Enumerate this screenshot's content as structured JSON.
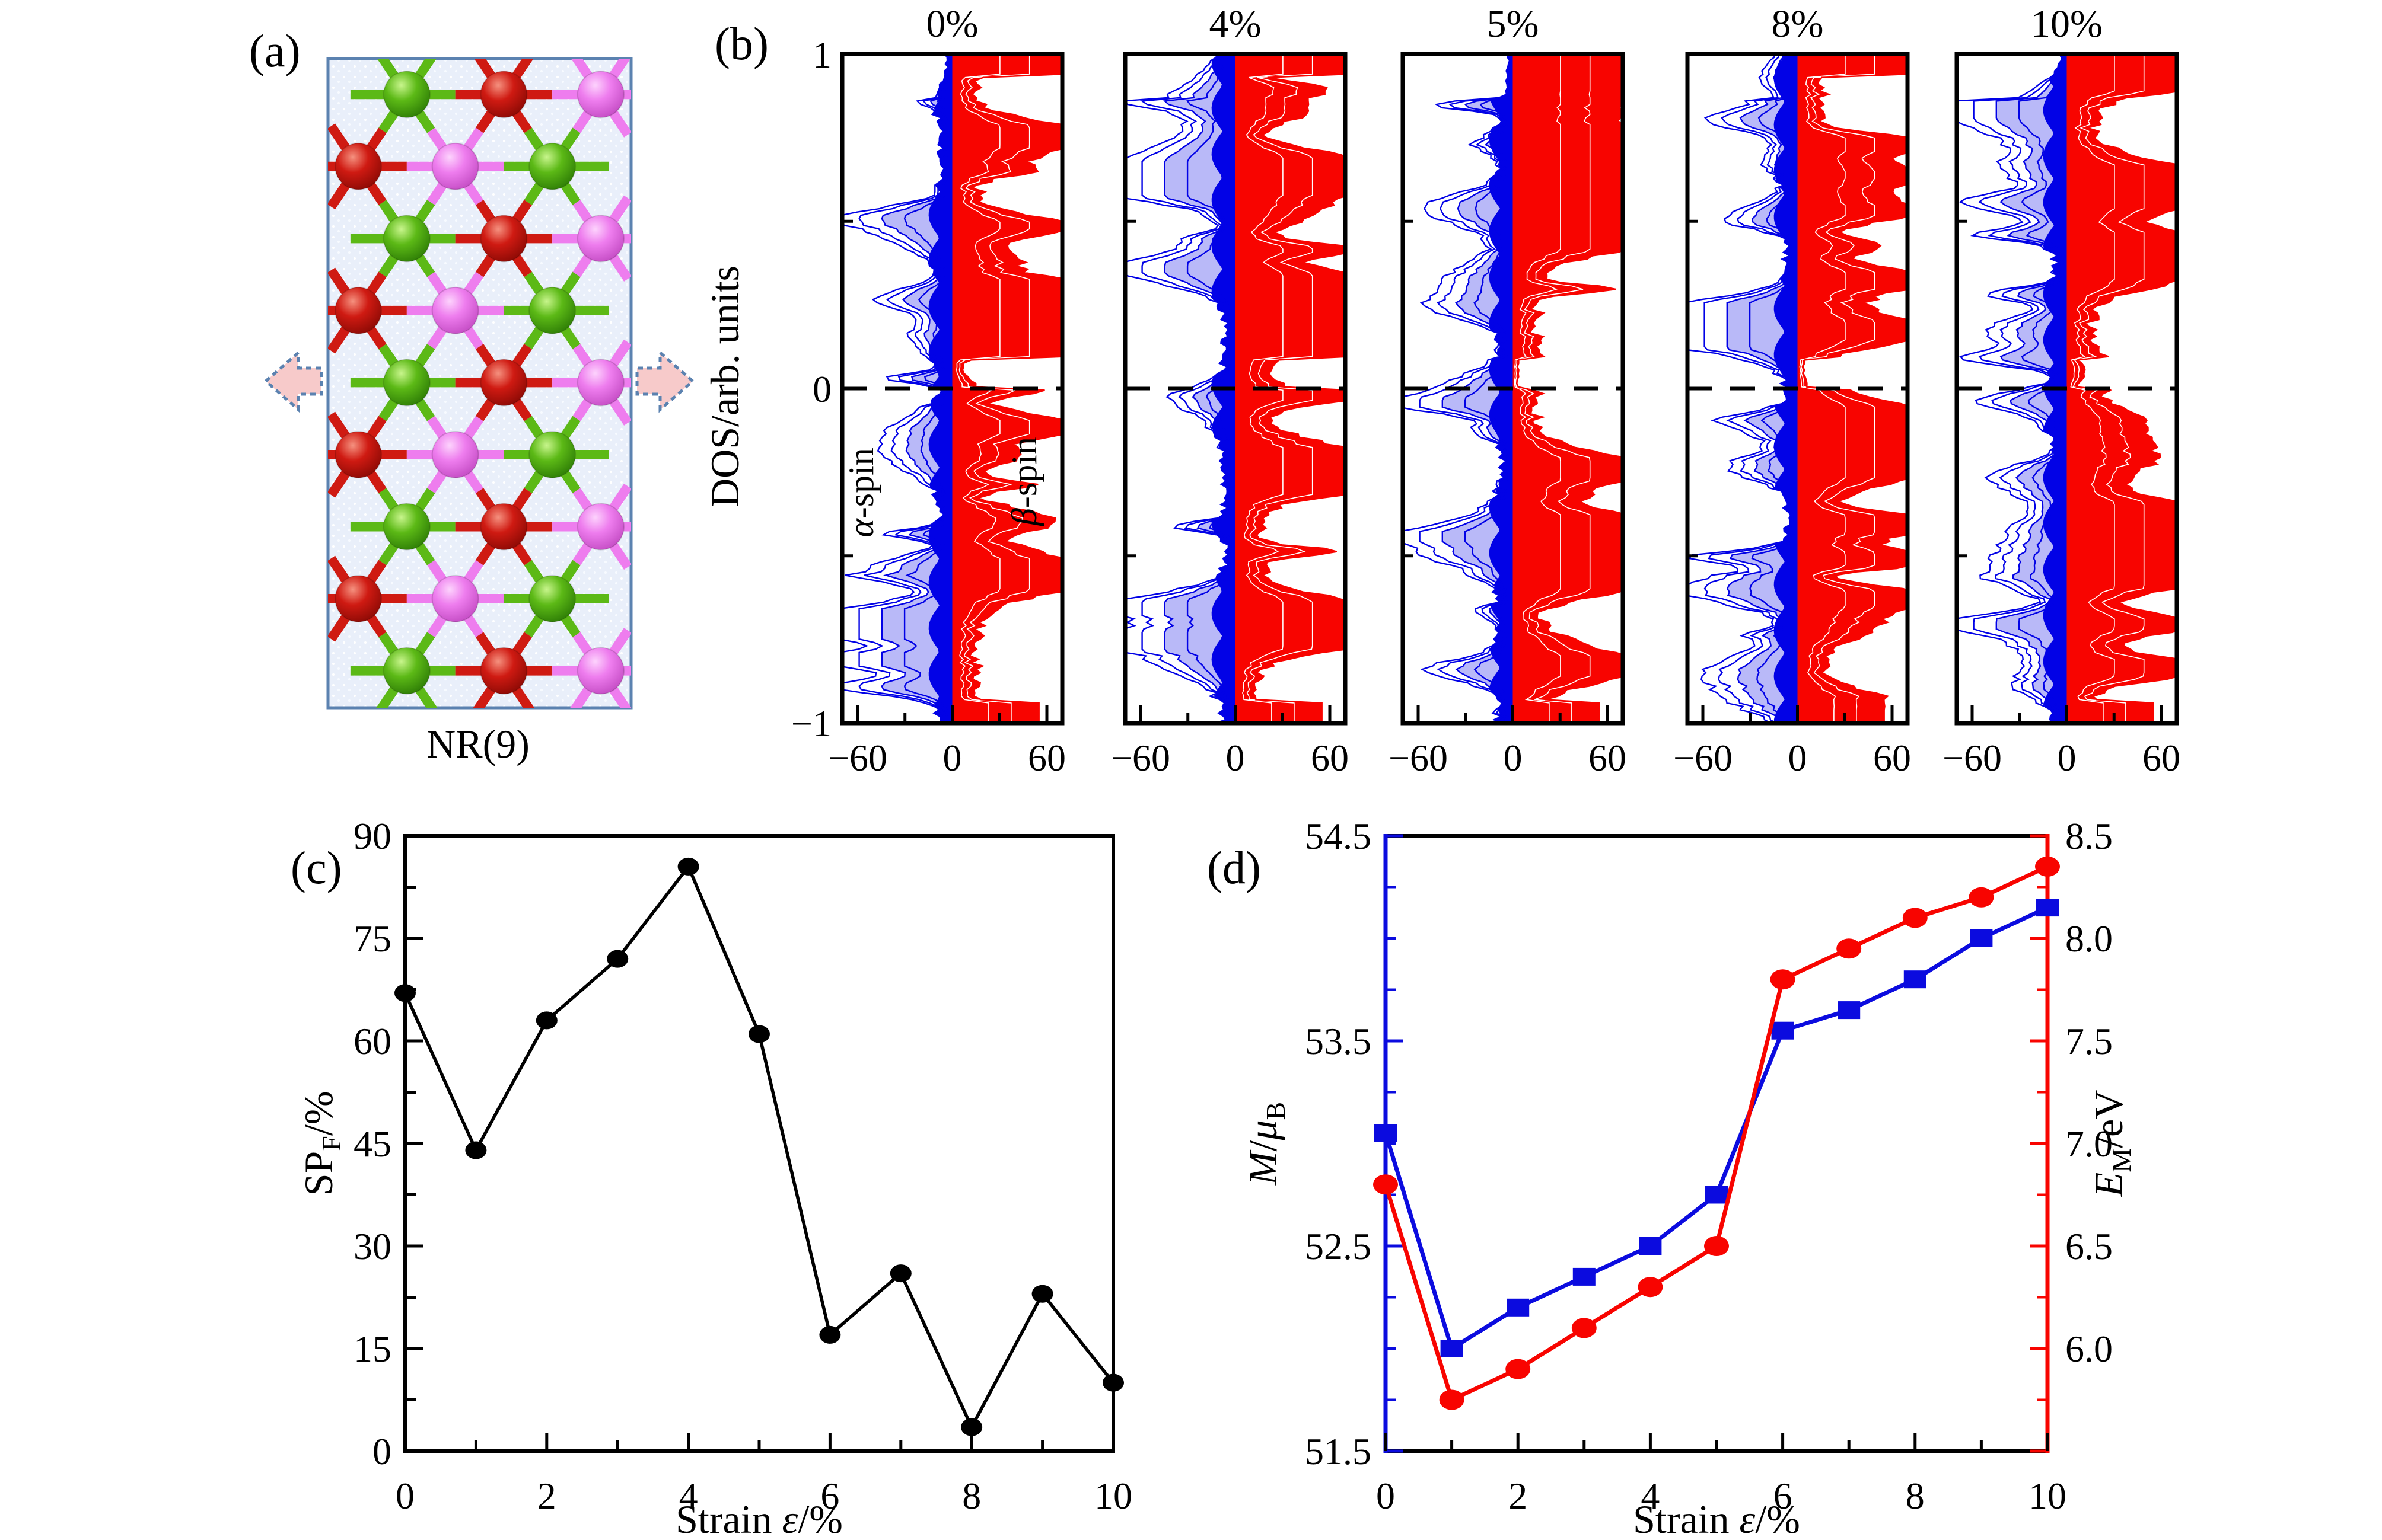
{
  "figure": {
    "panel_a": {
      "label": "(a)",
      "caption": "NR(9)",
      "box_bg": "#e9effa",
      "box_border": "#5b82b0",
      "arrow_fill": "#f7caca",
      "arrow_stroke": "#5b82b0",
      "atom_colors": {
        "green": "#5cb916",
        "red": "#cf1a12",
        "violet": "#ee7dee"
      },
      "lattice": {
        "rows": 9,
        "odd_x": [
          0.26,
          0.58,
          0.9
        ],
        "even_x": [
          0.1,
          0.42,
          0.74
        ],
        "odd_colors": [
          "green",
          "red",
          "violet"
        ],
        "even_colors": [
          "red",
          "violet",
          "green"
        ],
        "y_start": 0.055,
        "y_step": 0.111
      }
    },
    "panel_b": {
      "label": "(b)",
      "ylabel": "DOS/arb. units",
      "alpha_char": "α",
      "alpha_rest": "-spin",
      "beta_char": "β",
      "beta_rest": "-spin",
      "yticks": [
        "1",
        "0",
        "−1"
      ],
      "xticks": [
        "−60",
        "0",
        "60"
      ]
    },
    "panel_c": {
      "label": "(c)",
      "ylabel_main": "SP",
      "ylabel_sub": "F",
      "ylabel_rest": "/%",
      "xlabel_pre": "Strain ",
      "xlabel_eps": "ε",
      "xlabel_post": "/%"
    },
    "panel_d": {
      "label": "(d)",
      "ylabel_left_m": "M",
      "ylabel_left_slash": "/",
      "ylabel_left_mu": "μ",
      "ylabel_left_sub": "B",
      "ylabel_right_e": "E",
      "ylabel_right_sub": "M",
      "ylabel_right_rest": "/eV",
      "xlabel_pre": "Strain ",
      "xlabel_eps": "ε",
      "xlabel_post": "/%"
    }
  },
  "chart_data": [
    {
      "id": "dos-spin-panels",
      "type": "area",
      "panel_titles": [
        "0%",
        "4%",
        "5%",
        "8%",
        "10%"
      ],
      "xlim": [
        -70,
        70
      ],
      "xticks": [
        -60,
        0,
        60
      ],
      "xtick_labels": [
        "−60",
        "0",
        "60"
      ],
      "xminor": [
        -30,
        30
      ],
      "ylim": [
        -1,
        1
      ],
      "yticks": [
        1,
        0,
        -1
      ],
      "ytick_labels": [
        "1",
        "0",
        "−1"
      ],
      "yminor": [
        0.5,
        -0.5
      ],
      "ylabel": "DOS/arb. units",
      "fermi_level": 0,
      "series_labels": [
        "α-spin",
        "β-spin"
      ],
      "alpha_side": "negative-x",
      "beta_side": "positive-x",
      "colors": {
        "alpha": "#0202e6",
        "beta": "#f80400"
      },
      "procedural_seeds": {
        "alpha": [
          101,
          102,
          103,
          104,
          105
        ],
        "beta": [
          201,
          202,
          203,
          204,
          205
        ]
      }
    },
    {
      "id": "spin-polarization-vs-strain",
      "type": "line",
      "xlabel": "Strain ε/%",
      "ylabel": "SPF/%",
      "x": [
        0,
        1,
        2,
        3,
        4,
        5,
        6,
        7,
        8,
        9,
        10
      ],
      "y": [
        67,
        44,
        63,
        72,
        85.5,
        61,
        17,
        26,
        3.5,
        23,
        10
      ],
      "xlim": [
        0,
        10
      ],
      "xticks": [
        0,
        2,
        4,
        6,
        8,
        10
      ],
      "ylim": [
        0,
        90
      ],
      "yticks": [
        0,
        15,
        30,
        45,
        60,
        75,
        90
      ],
      "marker": "circle",
      "color": "#000000"
    },
    {
      "id": "moment-and-energy-vs-strain",
      "type": "line",
      "xlabel": "Strain ε/%",
      "x": [
        0,
        1,
        2,
        3,
        4,
        5,
        6,
        7,
        8,
        9,
        10
      ],
      "series": [
        {
          "name": "M/μB",
          "axis": "left",
          "marker": "square",
          "color": "#0b0bdf",
          "values": [
            53.05,
            52.0,
            52.2,
            52.35,
            52.5,
            52.75,
            53.55,
            53.65,
            53.8,
            54.0,
            54.15
          ]
        },
        {
          "name": "EM/eV",
          "axis": "right",
          "marker": "circle",
          "color": "#f80400",
          "values": [
            6.8,
            5.75,
            5.9,
            6.1,
            6.3,
            6.5,
            7.8,
            7.95,
            8.1,
            8.2,
            8.35
          ]
        }
      ],
      "xlim": [
        0,
        10
      ],
      "xticks": [
        0,
        2,
        4,
        6,
        8,
        10
      ],
      "left_ylim": [
        51.5,
        54.5
      ],
      "left_yticks": [
        51.5,
        52.5,
        53.5,
        54.5
      ],
      "right_ylim": [
        5.5,
        8.5
      ],
      "right_yticks": [
        6.0,
        6.5,
        7.0,
        7.5,
        8.0,
        8.5
      ]
    }
  ]
}
